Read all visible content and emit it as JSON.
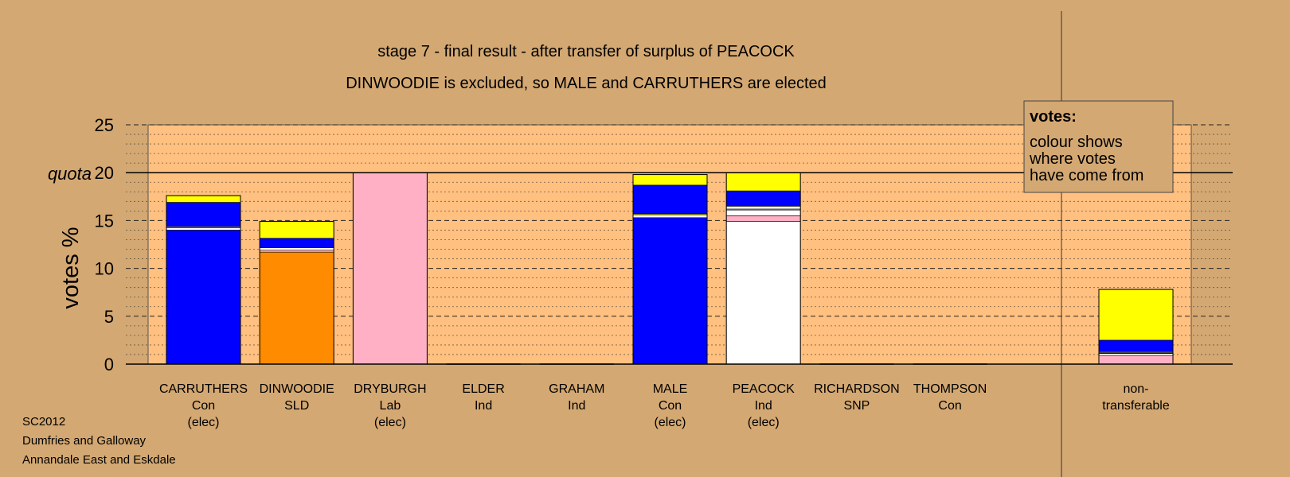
{
  "chart_data": {
    "type": "bar",
    "stacked": true,
    "title": "stage 7 - final result - after transfer of surplus of PEACOCK",
    "subtitle": "DINWOODIE is excluded, so MALE and CARRUTHERS are elected",
    "ylabel": "votes %",
    "ylim": [
      0,
      25
    ],
    "yticks": [
      0,
      5,
      10,
      15,
      20,
      25
    ],
    "quota": 20,
    "quota_label": "quota",
    "grid": true,
    "legend_box": {
      "heading": "votes:",
      "lines": [
        "colour shows",
        "where votes",
        "have come from"
      ]
    },
    "colors": {
      "Con": "#0000ff",
      "SLD": "#ff8c00",
      "Lab": "#ffb0c4",
      "Ind": "#ffffff",
      "Ind2": "#ffff00",
      "background": "#d4a872",
      "plot": "#ffc080"
    },
    "candidates": [
      {
        "name": "CARRUTHERS",
        "party": "Con",
        "status": "(elec)",
        "segments": [
          {
            "from": "Con",
            "value": 14.0
          },
          {
            "from": "Ind",
            "value": 0.25
          },
          {
            "from": "Ind2",
            "value": 0.1
          },
          {
            "from": "Con",
            "value": 2.55
          },
          {
            "from": "Ind2",
            "value": 0.7
          }
        ]
      },
      {
        "name": "DINWOODIE",
        "party": "SLD",
        "status": "",
        "segments": [
          {
            "from": "SLD",
            "value": 11.7
          },
          {
            "from": "Lab",
            "value": 0.2
          },
          {
            "from": "Ind",
            "value": 0.25
          },
          {
            "from": "Con",
            "value": 1.0
          },
          {
            "from": "Ind2",
            "value": 1.75
          }
        ]
      },
      {
        "name": "DRYBURGH",
        "party": "Lab",
        "status": "(elec)",
        "segments": [
          {
            "from": "Lab",
            "value": 20.0
          }
        ]
      },
      {
        "name": "ELDER",
        "party": "Ind",
        "status": "",
        "segments": []
      },
      {
        "name": "GRAHAM",
        "party": "Ind",
        "status": "",
        "segments": []
      },
      {
        "name": "MALE",
        "party": "Con",
        "status": "(elec)",
        "segments": [
          {
            "from": "Con",
            "value": 15.3
          },
          {
            "from": "Ind",
            "value": 0.3
          },
          {
            "from": "Ind2",
            "value": 0.1
          },
          {
            "from": "Con",
            "value": 3.0
          },
          {
            "from": "Ind2",
            "value": 1.1
          }
        ]
      },
      {
        "name": "PEACOCK",
        "party": "Ind",
        "status": "(elec)",
        "segments": [
          {
            "from": "Ind",
            "value": 14.9
          },
          {
            "from": "Lab",
            "value": 0.6
          },
          {
            "from": "Ind",
            "value": 0.6
          },
          {
            "from": "Lab",
            "value": 0.1
          },
          {
            "from": "Ind",
            "value": 0.3
          },
          {
            "from": "Con",
            "value": 1.6
          },
          {
            "from": "Ind2",
            "value": 1.9
          }
        ]
      },
      {
        "name": "RICHARDSON",
        "party": "SNP",
        "status": "",
        "segments": []
      },
      {
        "name": "THOMPSON",
        "party": "Con",
        "status": "",
        "segments": []
      }
    ],
    "non_transferable": {
      "label_lines": [
        "non-",
        "transferable"
      ],
      "segments": [
        {
          "from": "Lab",
          "value": 0.9
        },
        {
          "from": "Ind",
          "value": 0.2
        },
        {
          "from": "Con",
          "value": 0.1
        },
        {
          "from": "Ind",
          "value": 0.1
        },
        {
          "from": "Con",
          "value": 1.2
        },
        {
          "from": "Ind2",
          "value": 5.3
        }
      ]
    }
  },
  "footer": {
    "line1": "SC2012",
    "line2": "Dumfries and Galloway",
    "line3": "Annandale East and Eskdale"
  }
}
